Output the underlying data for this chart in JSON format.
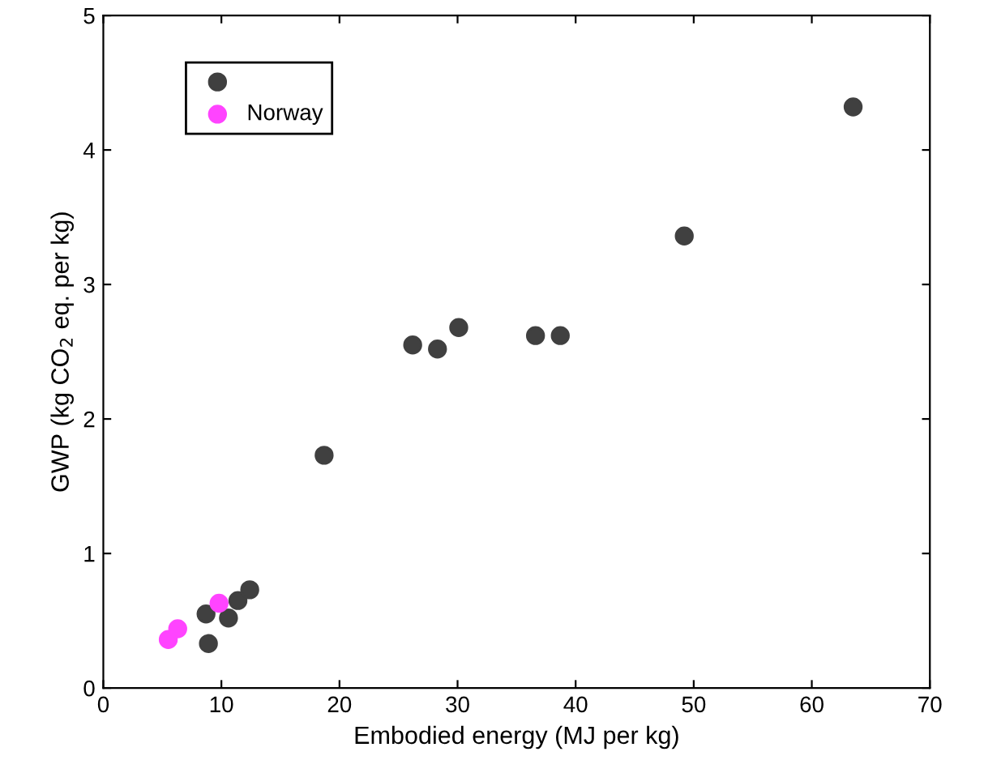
{
  "chart_data": {
    "type": "scatter",
    "xlabel": "Embodied energy (MJ per kg)",
    "ylabel": "GWP (kg CO$_{2}$ eq. per kg)",
    "xlim": [
      0,
      70
    ],
    "ylim": [
      0,
      5
    ],
    "xticks": [
      0,
      10,
      20,
      30,
      40,
      50,
      60,
      70
    ],
    "yticks": [
      0,
      1,
      2,
      3,
      4,
      5
    ],
    "marker": "circle",
    "legend": "top left",
    "grid": false,
    "series": [
      {
        "color": "#404040",
        "x": [
          8.7,
          8.9,
          10.6,
          11.4,
          12.4,
          18.7,
          26.2,
          28.3,
          30.1,
          36.6,
          38.7,
          49.2,
          63.5
        ],
        "values": [
          0.55,
          0.33,
          0.52,
          0.65,
          0.73,
          1.73,
          2.55,
          2.52,
          2.68,
          2.62,
          2.62,
          3.36,
          4.32
        ]
      },
      {
        "name": "Norway",
        "color": "#ff44ff",
        "x": [
          5.5,
          6.3,
          9.8
        ],
        "values": [
          0.36,
          0.44,
          0.63
        ]
      }
    ]
  }
}
